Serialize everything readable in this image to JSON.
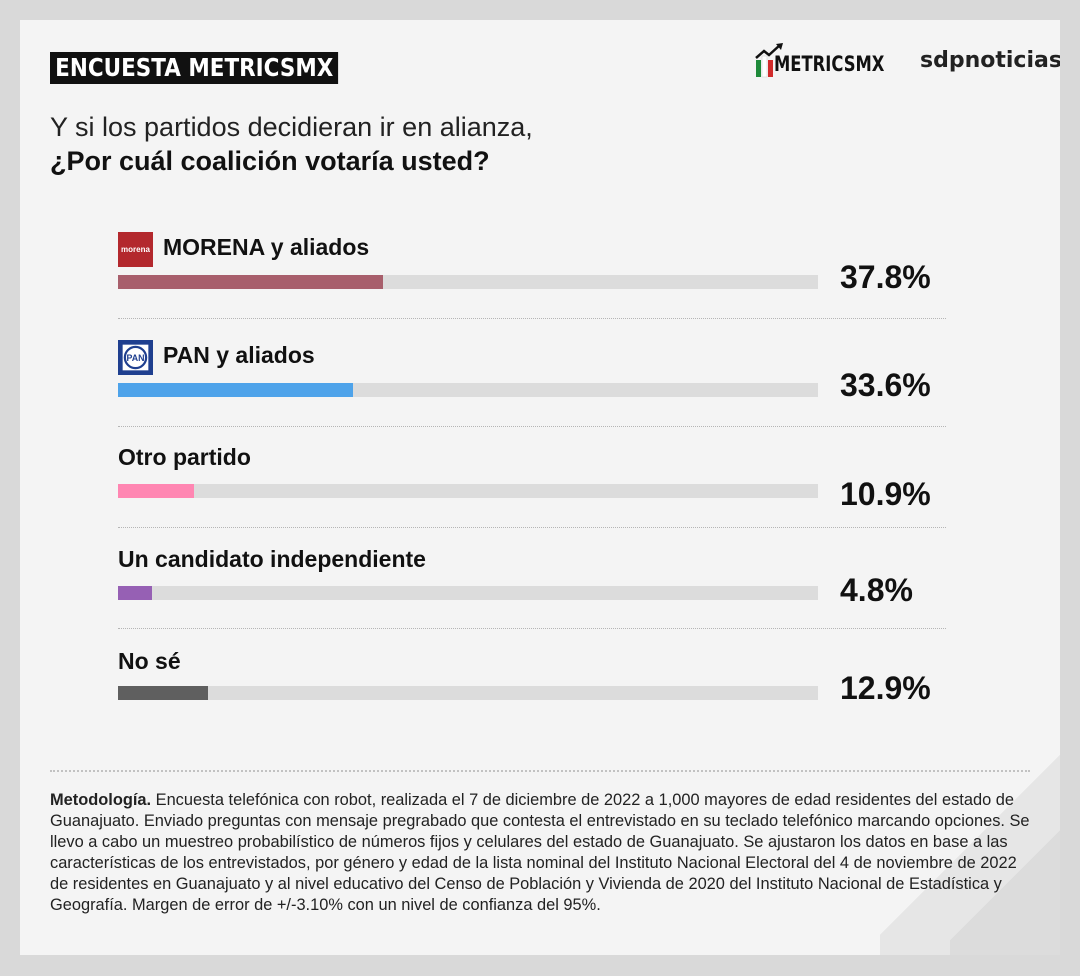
{
  "header": {
    "badge": "ENCUESTA METRICSMX",
    "brand": "METRICSMX",
    "partner": "sdpnoticias"
  },
  "question": {
    "line1": "Y si los partidos decidieran ir en alianza,",
    "line2": "¿Por cuál coalición votaría usted?"
  },
  "chart_data": {
    "type": "bar",
    "orientation": "horizontal",
    "categories": [
      "MORENA y aliados",
      "PAN y aliados",
      "Otro partido",
      "Un candidato independiente",
      "No sé"
    ],
    "values": [
      37.8,
      33.6,
      10.9,
      4.8,
      12.9
    ],
    "value_labels": [
      "37.8%",
      "33.6%",
      "10.9%",
      "4.8%",
      "12.9%"
    ],
    "colors": [
      "#a85f6c",
      "#4ea3ea",
      "#ff86b2",
      "#9660b4",
      "#5f5f5f"
    ],
    "track_color": "#dcdcdc",
    "xlim": [
      0,
      100
    ],
    "grid": false
  },
  "logos": {
    "morena": {
      "text": "morena",
      "icon": "morena-logo-icon"
    },
    "pan": {
      "text": "PAN",
      "icon": "pan-logo-icon"
    }
  },
  "methodology": {
    "label": "Metodología.",
    "text": " Encuesta telefónica con robot, realizada el 7 de diciembre de 2022 a 1,000 mayores de edad residentes del estado de Guanajuato. Enviado preguntas con mensaje pregrabado que contesta el entrevistado en su teclado telefónico marcando opciones. Se llevo a cabo un muestreo probabilístico de números fijos y celulares del estado de Guanajuato. Se ajustaron los datos en base a las características de los entrevistados, por género y edad de la lista nominal del Instituto Nacional Electoral del 4 de noviembre de 2022 de residentes en Guanajuato y al nivel educativo del Censo de Población y Vivienda de 2020 del Instituto Nacional de Estadística y Geografía. Margen de error de +/-3.10% con un nivel de confianza del 95%."
  }
}
